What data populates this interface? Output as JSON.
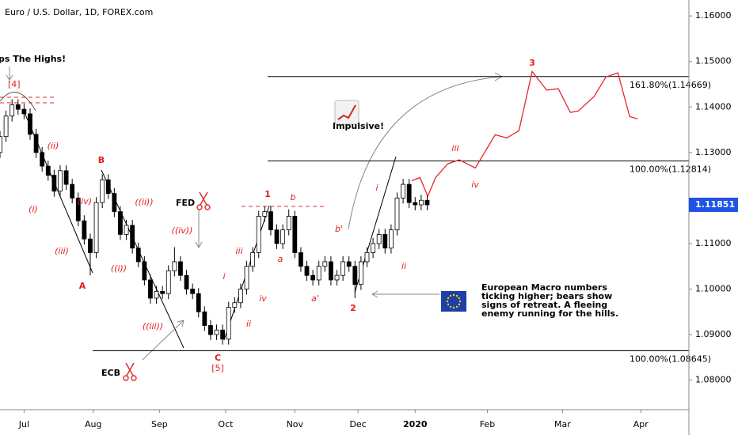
{
  "chart_data": {
    "type": "candlestick",
    "title": "Euro / U.S. Dollar, 1D, FOREX.com",
    "up_color": "#ffffff",
    "down_color": "#000000",
    "xlim": [
      -8,
      221
    ],
    "ylim": [
      1.0735,
      1.1635
    ],
    "xticks": [
      {
        "value": 0,
        "label": "Jul"
      },
      {
        "value": 23,
        "label": "Aug"
      },
      {
        "value": 45,
        "label": "Sep"
      },
      {
        "value": 67,
        "label": "Oct"
      },
      {
        "value": 90,
        "label": "Nov"
      },
      {
        "value": 111,
        "label": "Dec"
      },
      {
        "value": 130,
        "label": "2020"
      },
      {
        "value": 154,
        "label": "Feb"
      },
      {
        "value": 179,
        "label": "Mar"
      },
      {
        "value": 205,
        "label": "Apr"
      }
    ],
    "yticks": [
      {
        "value": 1.16,
        "label": "1.16000"
      },
      {
        "value": 1.15,
        "label": "1.15000"
      },
      {
        "value": 1.14,
        "label": "1.14000"
      },
      {
        "value": 1.13,
        "label": "1.13000"
      },
      {
        "value": 1.11,
        "label": "1.11000"
      },
      {
        "value": 1.1,
        "label": "1.10000"
      },
      {
        "value": 1.09,
        "label": "1.09000"
      },
      {
        "value": 1.08,
        "label": "1.08000"
      }
    ],
    "last_price": {
      "value": 1.11851,
      "label": "1.11851",
      "color": "#1e53e5"
    },
    "candles": [
      {
        "x": -8,
        "open": 1.13,
        "high": 1.1347,
        "low": 1.1288,
        "close": 1.1335
      },
      {
        "x": -6,
        "open": 1.1335,
        "high": 1.1392,
        "low": 1.1323,
        "close": 1.138
      },
      {
        "x": -4,
        "open": 1.138,
        "high": 1.1417,
        "low": 1.1368,
        "close": 1.1405
      },
      {
        "x": -2,
        "open": 1.1405,
        "high": 1.1417,
        "low": 1.1383,
        "close": 1.1395
      },
      {
        "x": 0,
        "open": 1.1395,
        "high": 1.1407,
        "low": 1.1373,
        "close": 1.1385
      },
      {
        "x": 2,
        "open": 1.1385,
        "high": 1.1397,
        "low": 1.1328,
        "close": 1.134
      },
      {
        "x": 4,
        "open": 1.134,
        "high": 1.1352,
        "low": 1.1288,
        "close": 1.13
      },
      {
        "x": 6,
        "open": 1.13,
        "high": 1.1312,
        "low": 1.1258,
        "close": 1.127
      },
      {
        "x": 8,
        "open": 1.127,
        "high": 1.1282,
        "low": 1.1238,
        "close": 1.125
      },
      {
        "x": 10,
        "open": 1.125,
        "high": 1.1262,
        "low": 1.1203,
        "close": 1.1215
      },
      {
        "x": 12,
        "open": 1.1215,
        "high": 1.1272,
        "low": 1.1203,
        "close": 1.126
      },
      {
        "x": 14,
        "open": 1.126,
        "high": 1.1272,
        "low": 1.1218,
        "close": 1.123
      },
      {
        "x": 16,
        "open": 1.123,
        "high": 1.1242,
        "low": 1.1188,
        "close": 1.12
      },
      {
        "x": 18,
        "open": 1.12,
        "high": 1.1212,
        "low": 1.1138,
        "close": 1.115
      },
      {
        "x": 20,
        "open": 1.115,
        "high": 1.1162,
        "low": 1.1098,
        "close": 1.111
      },
      {
        "x": 22,
        "open": 1.111,
        "high": 1.1122,
        "low": 1.103,
        "close": 1.108
      },
      {
        "x": 24,
        "open": 1.108,
        "high": 1.1202,
        "low": 1.1068,
        "close": 1.119
      },
      {
        "x": 26,
        "open": 1.119,
        "high": 1.1252,
        "low": 1.1178,
        "close": 1.124
      },
      {
        "x": 28,
        "open": 1.124,
        "high": 1.1252,
        "low": 1.1198,
        "close": 1.121
      },
      {
        "x": 30,
        "open": 1.121,
        "high": 1.1222,
        "low": 1.1158,
        "close": 1.117
      },
      {
        "x": 32,
        "open": 1.117,
        "high": 1.1182,
        "low": 1.1108,
        "close": 1.112
      },
      {
        "x": 34,
        "open": 1.112,
        "high": 1.1152,
        "low": 1.1108,
        "close": 1.114
      },
      {
        "x": 36,
        "open": 1.114,
        "high": 1.1152,
        "low": 1.1078,
        "close": 1.109
      },
      {
        "x": 38,
        "open": 1.109,
        "high": 1.1102,
        "low": 1.1048,
        "close": 1.106
      },
      {
        "x": 40,
        "open": 1.106,
        "high": 1.1072,
        "low": 1.1008,
        "close": 1.102
      },
      {
        "x": 42,
        "open": 1.102,
        "high": 1.1032,
        "low": 1.0968,
        "close": 1.098
      },
      {
        "x": 44,
        "open": 1.098,
        "high": 1.1007,
        "low": 1.0968,
        "close": 1.0995
      },
      {
        "x": 46,
        "open": 1.0995,
        "high": 1.1007,
        "low": 1.0978,
        "close": 1.099
      },
      {
        "x": 48,
        "open": 1.099,
        "high": 1.1052,
        "low": 1.0978,
        "close": 1.104
      },
      {
        "x": 50,
        "open": 1.104,
        "high": 1.1092,
        "low": 1.1028,
        "close": 1.106
      },
      {
        "x": 52,
        "open": 1.106,
        "high": 1.1072,
        "low": 1.1018,
        "close": 1.103
      },
      {
        "x": 54,
        "open": 1.103,
        "high": 1.1042,
        "low": 1.0988,
        "close": 1.1
      },
      {
        "x": 56,
        "open": 1.1,
        "high": 1.1012,
        "low": 1.0978,
        "close": 1.099
      },
      {
        "x": 58,
        "open": 1.099,
        "high": 1.1002,
        "low": 1.0938,
        "close": 1.095
      },
      {
        "x": 60,
        "open": 1.095,
        "high": 1.0962,
        "low": 1.0908,
        "close": 1.092
      },
      {
        "x": 62,
        "open": 1.092,
        "high": 1.0932,
        "low": 1.0888,
        "close": 1.09
      },
      {
        "x": 64,
        "open": 1.09,
        "high": 1.0922,
        "low": 1.0888,
        "close": 1.091
      },
      {
        "x": 66,
        "open": 1.091,
        "high": 1.0922,
        "low": 1.0878,
        "close": 1.089
      },
      {
        "x": 68,
        "open": 1.089,
        "high": 1.0972,
        "low": 1.0878,
        "close": 1.096
      },
      {
        "x": 70,
        "open": 1.096,
        "high": 1.0982,
        "low": 1.0948,
        "close": 1.097
      },
      {
        "x": 72,
        "open": 1.097,
        "high": 1.1012,
        "low": 1.0958,
        "close": 1.1
      },
      {
        "x": 74,
        "open": 1.1,
        "high": 1.1062,
        "low": 1.0988,
        "close": 1.105
      },
      {
        "x": 76,
        "open": 1.105,
        "high": 1.1092,
        "low": 1.1038,
        "close": 1.108
      },
      {
        "x": 78,
        "open": 1.108,
        "high": 1.1172,
        "low": 1.1068,
        "close": 1.116
      },
      {
        "x": 80,
        "open": 1.116,
        "high": 1.1182,
        "low": 1.1148,
        "close": 1.117
      },
      {
        "x": 82,
        "open": 1.117,
        "high": 1.1182,
        "low": 1.1118,
        "close": 1.113
      },
      {
        "x": 84,
        "open": 1.113,
        "high": 1.1142,
        "low": 1.1088,
        "close": 1.11
      },
      {
        "x": 86,
        "open": 1.11,
        "high": 1.1142,
        "low": 1.1088,
        "close": 1.113
      },
      {
        "x": 88,
        "open": 1.113,
        "high": 1.1175,
        "low": 1.1118,
        "close": 1.116
      },
      {
        "x": 90,
        "open": 1.116,
        "high": 1.1172,
        "low": 1.1068,
        "close": 1.108
      },
      {
        "x": 92,
        "open": 1.108,
        "high": 1.1092,
        "low": 1.1038,
        "close": 1.105
      },
      {
        "x": 94,
        "open": 1.105,
        "high": 1.1062,
        "low": 1.1018,
        "close": 1.103
      },
      {
        "x": 96,
        "open": 1.103,
        "high": 1.1042,
        "low": 1.1008,
        "close": 1.102
      },
      {
        "x": 98,
        "open": 1.102,
        "high": 1.1062,
        "low": 1.1008,
        "close": 1.105
      },
      {
        "x": 100,
        "open": 1.105,
        "high": 1.1072,
        "low": 1.1038,
        "close": 1.106
      },
      {
        "x": 102,
        "open": 1.106,
        "high": 1.1072,
        "low": 1.1008,
        "close": 1.102
      },
      {
        "x": 104,
        "open": 1.102,
        "high": 1.1042,
        "low": 1.1008,
        "close": 1.103
      },
      {
        "x": 106,
        "open": 1.103,
        "high": 1.1072,
        "low": 1.1018,
        "close": 1.106
      },
      {
        "x": 108,
        "open": 1.106,
        "high": 1.1072,
        "low": 1.1038,
        "close": 1.105
      },
      {
        "x": 110,
        "open": 1.105,
        "high": 1.1062,
        "low": 1.098,
        "close": 1.101
      },
      {
        "x": 112,
        "open": 1.101,
        "high": 1.1072,
        "low": 1.0998,
        "close": 1.106
      },
      {
        "x": 114,
        "open": 1.106,
        "high": 1.1092,
        "low": 1.1048,
        "close": 1.108
      },
      {
        "x": 116,
        "open": 1.108,
        "high": 1.1112,
        "low": 1.1068,
        "close": 1.11
      },
      {
        "x": 118,
        "open": 1.11,
        "high": 1.1132,
        "low": 1.1088,
        "close": 1.112
      },
      {
        "x": 120,
        "open": 1.112,
        "high": 1.1132,
        "low": 1.1078,
        "close": 1.109
      },
      {
        "x": 122,
        "open": 1.109,
        "high": 1.1142,
        "low": 1.1078,
        "close": 1.113
      },
      {
        "x": 124,
        "open": 1.113,
        "high": 1.1212,
        "low": 1.1118,
        "close": 1.12
      },
      {
        "x": 126,
        "open": 1.12,
        "high": 1.1242,
        "low": 1.1188,
        "close": 1.123
      },
      {
        "x": 128,
        "open": 1.123,
        "high": 1.1242,
        "low": 1.1178,
        "close": 1.119
      },
      {
        "x": 130,
        "open": 1.119,
        "high": 1.1202,
        "low": 1.1173,
        "close": 1.1185
      },
      {
        "x": 132,
        "open": 1.1185,
        "high": 1.1207,
        "low": 1.1173,
        "close": 1.1195
      },
      {
        "x": 134,
        "open": 1.1195,
        "high": 1.1207,
        "low": 1.1173,
        "close": 1.1185
      }
    ],
    "projection": {
      "color": "#e8262a",
      "x": [
        128.9,
        131.6,
        134.2,
        136.8,
        140.8,
        144.7,
        150,
        156.6,
        160.5,
        164.5,
        168.9,
        173.7,
        177.6,
        181.6,
        184.2,
        189.5,
        193.4,
        197.4,
        201.3,
        203.9
      ],
      "values": [
        1.1238,
        1.1245,
        1.1204,
        1.1245,
        1.1275,
        1.1284,
        1.1266,
        1.1339,
        1.1332,
        1.1348,
        1.1478,
        1.1437,
        1.144,
        1.1388,
        1.1391,
        1.1423,
        1.1466,
        1.1475,
        1.1379,
        1.1374
      ]
    },
    "levels": [
      {
        "value": 1.14669,
        "label": "161.80%(1.14669)"
      },
      {
        "value": 1.12814,
        "label": "100.00%(1.12814)"
      },
      {
        "value": 1.08645,
        "label": "100.00%(1.08645)"
      }
    ],
    "annotations": [
      "ps The Highs!",
      "[4]",
      "(i)",
      "(ii)",
      "(iii)",
      "(iv)",
      "A",
      "B",
      "((i))",
      "((ii))",
      "((iii))",
      "((iv))",
      "FED",
      "ECB",
      "C",
      "[5]",
      "i",
      "ii",
      "iii",
      "iv",
      "1",
      "a",
      "b",
      "a'",
      "b'",
      "2",
      "i",
      "ii",
      "iii",
      "iv",
      "3",
      "Impulsive!"
    ],
    "note": [
      "European Macro numbers",
      "ticking higher; bears show",
      "signs of retreat. A fleeing",
      "enemy running for the hills."
    ]
  }
}
